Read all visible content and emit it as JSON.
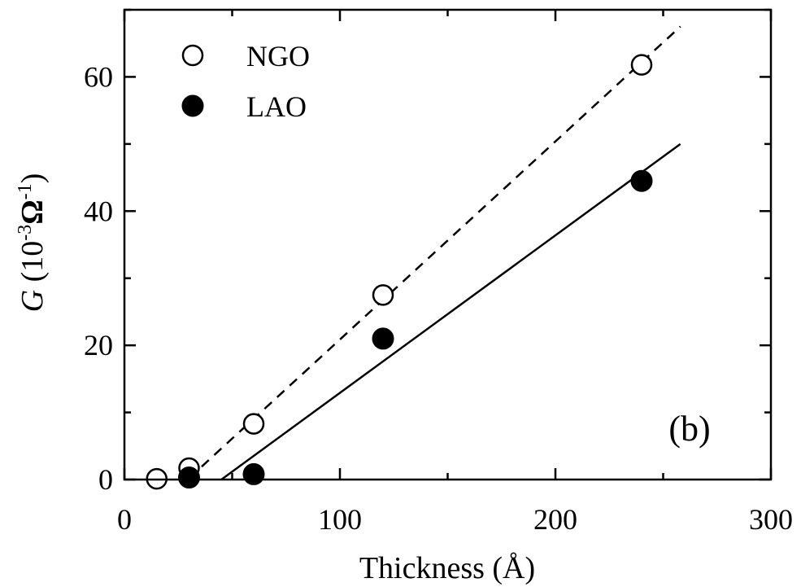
{
  "chart_data": {
    "type": "scatter",
    "title": "",
    "xlabel": "Thickness (Å)",
    "ylabel": {
      "italic": "G",
      "prefix": " (10",
      "exp1": "-3",
      "mid": "Ω",
      "exp2": "-1",
      "suffix": ")"
    },
    "xlim": [
      0,
      300
    ],
    "ylim": [
      0,
      70
    ],
    "xticks": [
      0,
      100,
      200,
      300
    ],
    "yticks": [
      0,
      20,
      40,
      60
    ],
    "grid": false,
    "legend_position": "top-left",
    "annotation": "(b)",
    "series": [
      {
        "name": "NGO",
        "marker": "open-circle",
        "x": [
          15,
          30,
          60,
          120,
          240
        ],
        "y": [
          0.1,
          1.7,
          8.3,
          27.5,
          61.8
        ],
        "fit": {
          "style": "dashed",
          "x": [
            30,
            258
          ],
          "y": [
            0.2,
            67.5
          ]
        }
      },
      {
        "name": "LAO",
        "marker": "filled-circle",
        "x": [
          30,
          60,
          120,
          240
        ],
        "y": [
          0.3,
          0.8,
          21.0,
          44.5
        ],
        "fit": {
          "style": "solid",
          "x": [
            45,
            258
          ],
          "y": [
            0.0,
            50.0
          ]
        }
      }
    ]
  }
}
